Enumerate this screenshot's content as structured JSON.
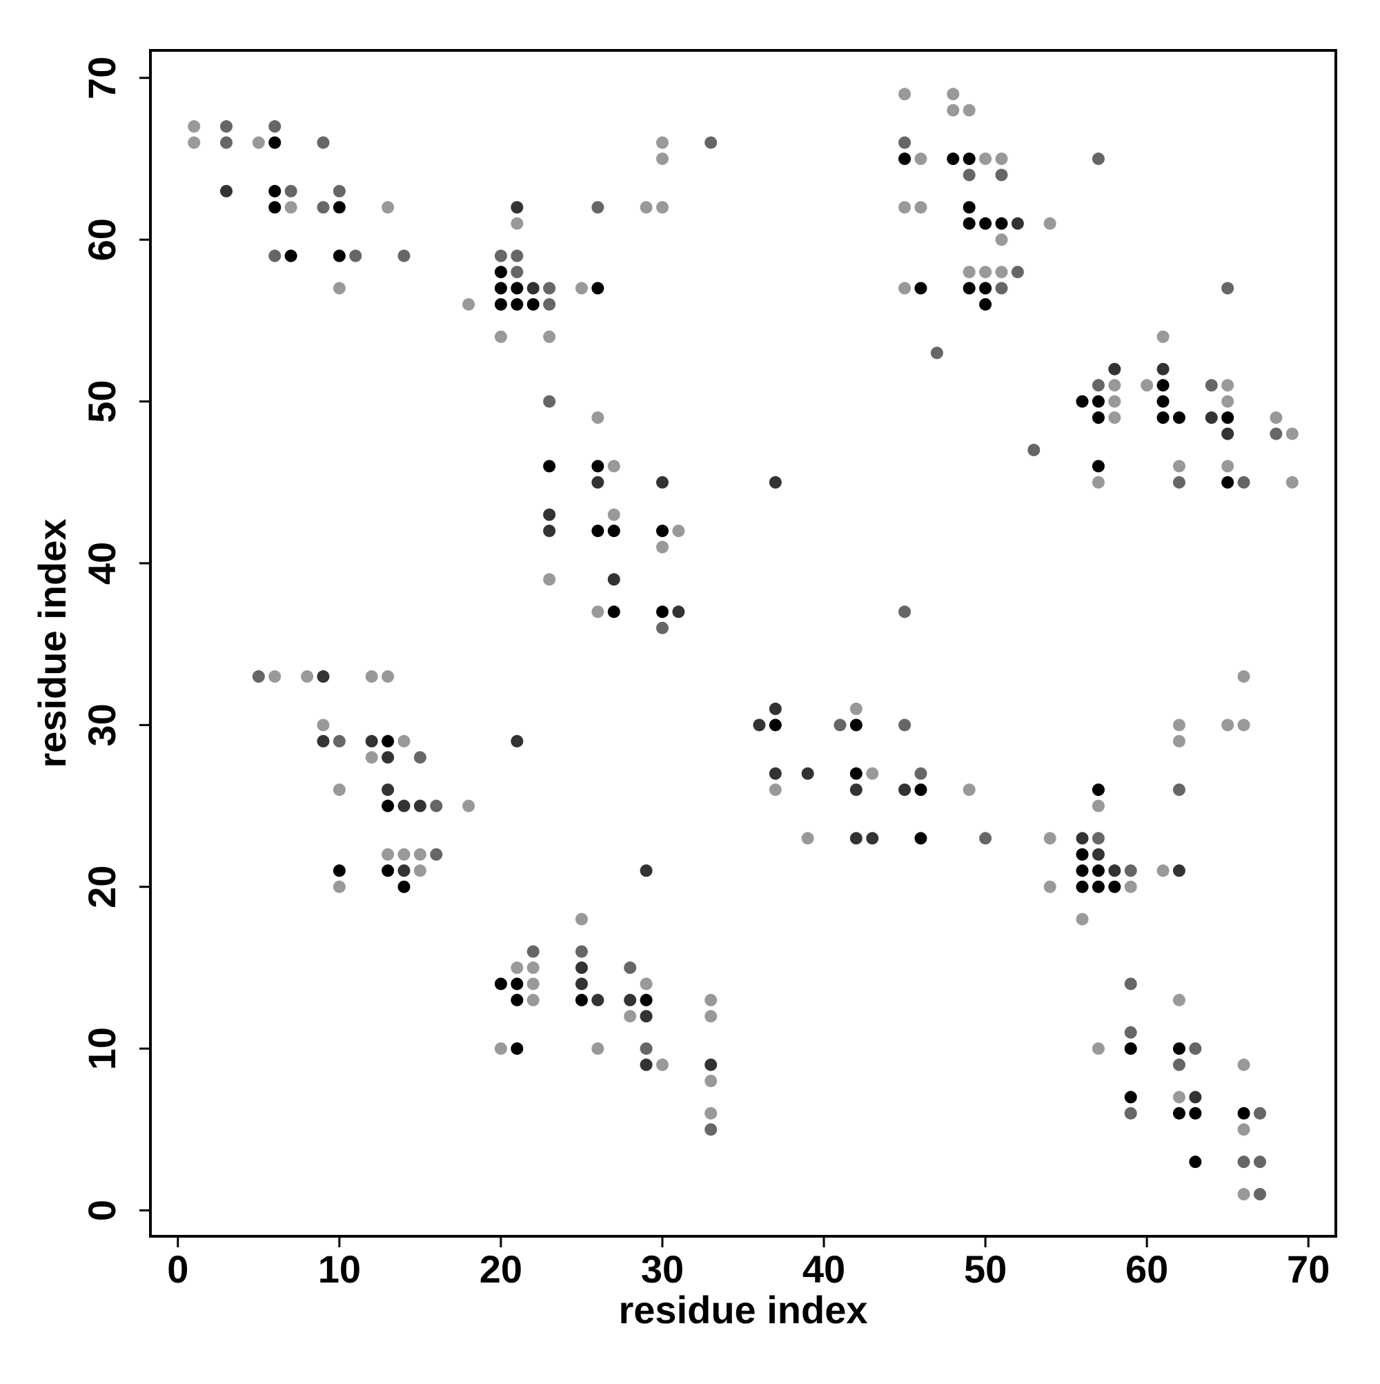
{
  "chart_data": {
    "type": "scatter",
    "xlabel": "residue index",
    "ylabel": "residue index",
    "xlim": [
      -1.7,
      71.7
    ],
    "ylim": [
      -1.6,
      71.7
    ],
    "xticks": [
      0,
      10,
      20,
      30,
      40,
      50,
      60,
      70
    ],
    "yticks": [
      0,
      10,
      20,
      30,
      40,
      50,
      60,
      70
    ],
    "series": [
      {
        "color": "#000000",
        "x": [
          6,
          6,
          6,
          10,
          7,
          10,
          20,
          20,
          21,
          20,
          21,
          22,
          26,
          23,
          26,
          26,
          27,
          30,
          27,
          30,
          45,
          48,
          49,
          49,
          49,
          50,
          51,
          46,
          49,
          50,
          50,
          56,
          57,
          57,
          57,
          61,
          61,
          61,
          62,
          65,
          65,
          13,
          13,
          10,
          13,
          14,
          37,
          42,
          42,
          46,
          46,
          57,
          56,
          56,
          57,
          56,
          57,
          58,
          20,
          21,
          21,
          25,
          29,
          21,
          59,
          59,
          62,
          62,
          63,
          63,
          66
        ],
        "y": [
          66,
          63,
          62,
          62,
          59,
          59,
          58,
          57,
          57,
          56,
          56,
          56,
          57,
          46,
          46,
          42,
          42,
          42,
          37,
          37,
          65,
          65,
          65,
          62,
          61,
          61,
          61,
          57,
          57,
          57,
          56,
          50,
          50,
          49,
          46,
          51,
          50,
          49,
          49,
          49,
          45,
          29,
          25,
          21,
          21,
          20,
          30,
          30,
          27,
          26,
          23,
          26,
          22,
          21,
          21,
          20,
          20,
          20,
          14,
          14,
          13,
          13,
          13,
          10,
          10,
          7,
          10,
          6,
          6,
          3,
          6
        ]
      },
      {
        "color": "#333333",
        "x": [
          3,
          21,
          22,
          26,
          30,
          23,
          23,
          27,
          31,
          37,
          52,
          58,
          61,
          64,
          65,
          9,
          9,
          12,
          13,
          13,
          14,
          15,
          14,
          21,
          36,
          37,
          37,
          39,
          42,
          42,
          43,
          45,
          56,
          57,
          58,
          62,
          25,
          25,
          26,
          28,
          29,
          29,
          29,
          33,
          63
        ],
        "y": [
          63,
          62,
          57,
          45,
          45,
          43,
          42,
          39,
          37,
          45,
          61,
          52,
          52,
          49,
          48,
          33,
          29,
          29,
          28,
          26,
          25,
          25,
          21,
          29,
          30,
          31,
          27,
          27,
          26,
          23,
          23,
          26,
          23,
          22,
          21,
          21,
          15,
          14,
          13,
          13,
          12,
          21,
          9,
          9,
          7
        ]
      },
      {
        "color": "#666666",
        "x": [
          3,
          3,
          6,
          7,
          9,
          9,
          10,
          6,
          11,
          14,
          20,
          21,
          21,
          23,
          23,
          26,
          33,
          23,
          30,
          45,
          49,
          51,
          52,
          51,
          47,
          57,
          53,
          57,
          62,
          64,
          66,
          65,
          68,
          5,
          10,
          15,
          16,
          16,
          41,
          45,
          46,
          50,
          45,
          57,
          59,
          62,
          22,
          25,
          28,
          29,
          33,
          59,
          59,
          59,
          63,
          62,
          67,
          66,
          67,
          67
        ],
        "y": [
          67,
          66,
          67,
          63,
          66,
          62,
          63,
          59,
          59,
          59,
          59,
          59,
          58,
          57,
          56,
          62,
          66,
          50,
          36,
          66,
          64,
          64,
          58,
          57,
          53,
          65,
          47,
          51,
          45,
          51,
          45,
          57,
          48,
          33,
          29,
          28,
          25,
          22,
          30,
          30,
          27,
          23,
          37,
          23,
          21,
          26,
          16,
          16,
          15,
          10,
          5,
          14,
          11,
          6,
          10,
          9,
          6,
          3,
          3,
          1
        ]
      },
      {
        "color": "#999999",
        "x": [
          1,
          1,
          5,
          7,
          13,
          10,
          18,
          21,
          20,
          23,
          25,
          29,
          30,
          30,
          30,
          26,
          27,
          27,
          31,
          30,
          23,
          26,
          45,
          48,
          48,
          49,
          46,
          50,
          51,
          45,
          46,
          54,
          51,
          49,
          50,
          51,
          45,
          58,
          58,
          58,
          57,
          60,
          61,
          62,
          65,
          65,
          65,
          68,
          69,
          69,
          6,
          8,
          12,
          13,
          9,
          14,
          12,
          10,
          18,
          13,
          14,
          15,
          15,
          10,
          37,
          39,
          42,
          43,
          49,
          54,
          54,
          57,
          59,
          56,
          61,
          62,
          62,
          65,
          66,
          66,
          21,
          22,
          22,
          22,
          25,
          29,
          28,
          20,
          26,
          30,
          33,
          33,
          33,
          33,
          57,
          62,
          62,
          66,
          66,
          66
        ],
        "y": [
          67,
          66,
          66,
          62,
          62,
          57,
          56,
          61,
          54,
          54,
          57,
          62,
          62,
          66,
          65,
          49,
          46,
          43,
          42,
          41,
          39,
          37,
          69,
          69,
          68,
          68,
          65,
          65,
          65,
          62,
          62,
          61,
          60,
          58,
          58,
          58,
          57,
          51,
          50,
          49,
          45,
          51,
          54,
          46,
          51,
          50,
          46,
          49,
          48,
          45,
          33,
          33,
          33,
          33,
          30,
          29,
          28,
          26,
          25,
          22,
          22,
          22,
          21,
          20,
          26,
          23,
          31,
          27,
          26,
          23,
          20,
          25,
          20,
          18,
          21,
          30,
          29,
          30,
          30,
          33,
          15,
          15,
          14,
          13,
          18,
          14,
          12,
          10,
          10,
          9,
          13,
          12,
          8,
          6,
          10,
          13,
          7,
          9,
          5,
          1
        ]
      }
    ]
  }
}
